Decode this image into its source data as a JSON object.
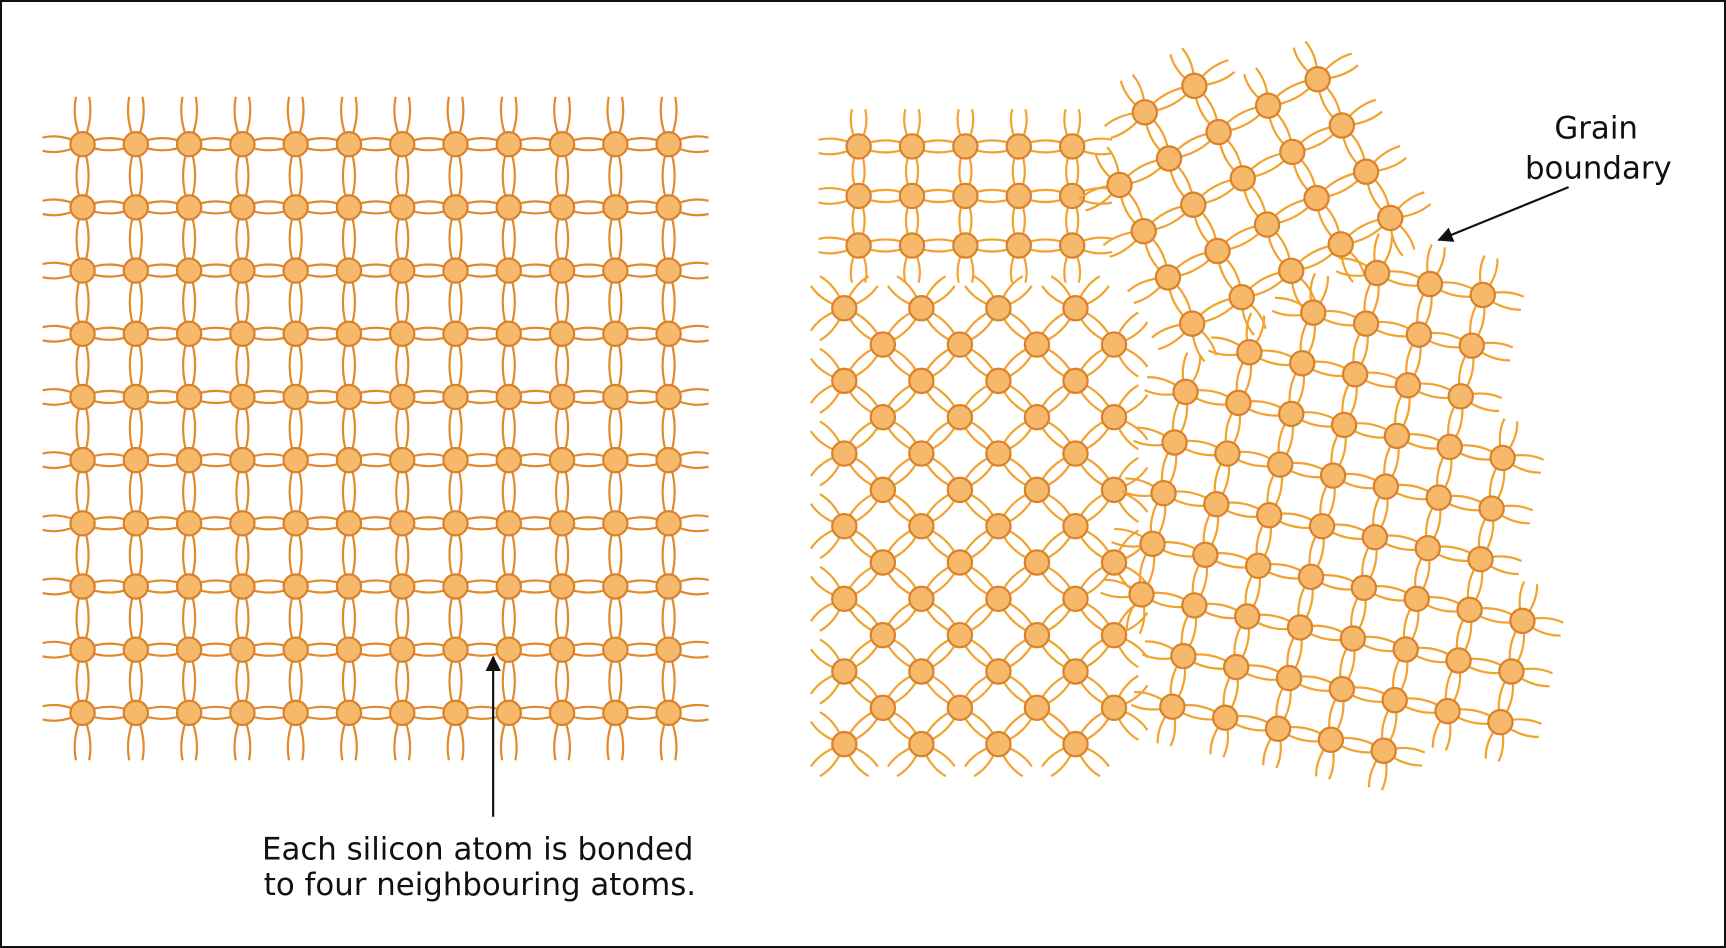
{
  "annotations": {
    "bonding": [
      "Each silicon atom is bonded",
      "to four neighbouring atoms."
    ],
    "grain_boundary": [
      "Grain",
      "boundary"
    ]
  }
}
